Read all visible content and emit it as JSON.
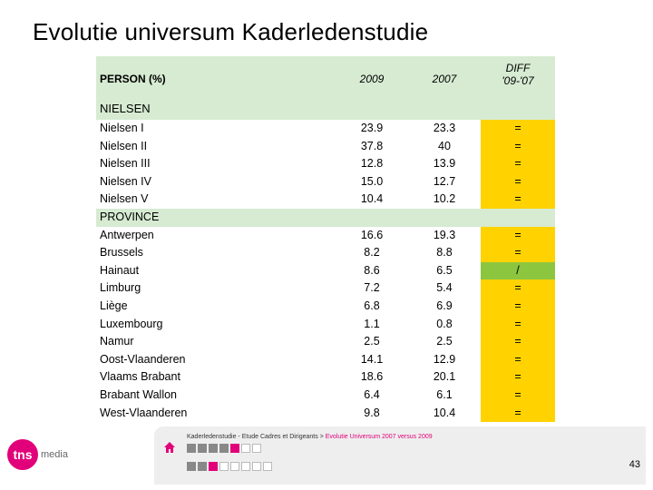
{
  "title": "Evolutie universum Kaderledenstudie",
  "table": {
    "header": {
      "col0": "PERSON (%)",
      "col1": "2009",
      "col2": "2007",
      "col3_line1": "DIFF",
      "col3_line2": "'09-'07"
    },
    "sections": [
      {
        "label": "NIELSEN",
        "rows": [
          {
            "name": "Nielsen I",
            "y2009": "23.9",
            "y2007": "23.3",
            "diff": "="
          },
          {
            "name": "Nielsen II",
            "y2009": "37.8",
            "y2007": "40",
            "diff": "="
          },
          {
            "name": "Nielsen III",
            "y2009": "12.8",
            "y2007": "13.9",
            "diff": "="
          },
          {
            "name": "Nielsen IV",
            "y2009": "15.0",
            "y2007": "12.7",
            "diff": "="
          },
          {
            "name": "Nielsen V",
            "y2009": "10.4",
            "y2007": "10.2",
            "diff": "="
          }
        ]
      },
      {
        "label": "PROVINCE",
        "rows": [
          {
            "name": "Antwerpen",
            "y2009": "16.6",
            "y2007": "19.3",
            "diff": "="
          },
          {
            "name": "Brussels",
            "y2009": "8.2",
            "y2007": "8.8",
            "diff": "="
          },
          {
            "name": "Hainaut",
            "y2009": "8.6",
            "y2007": "6.5",
            "diff": "/"
          },
          {
            "name": "Limburg",
            "y2009": "7.2",
            "y2007": "5.4",
            "diff": "="
          },
          {
            "name": "Liège",
            "y2009": "6.8",
            "y2007": "6.9",
            "diff": "="
          },
          {
            "name": "Luxembourg",
            "y2009": "1.1",
            "y2007": "0.8",
            "diff": "="
          },
          {
            "name": "Namur",
            "y2009": "2.5",
            "y2007": "2.5",
            "diff": "="
          },
          {
            "name": "Oost-Vlaanderen",
            "y2009": "14.1",
            "y2007": "12.9",
            "diff": "="
          },
          {
            "name": "Vlaams Brabant",
            "y2009": "18.6",
            "y2007": "20.1",
            "diff": "="
          },
          {
            "name": "Brabant Wallon",
            "y2009": "6.4",
            "y2007": "6.1",
            "diff": "="
          },
          {
            "name": "West-Vlaanderen",
            "y2009": "9.8",
            "y2007": "10.4",
            "diff": "="
          }
        ]
      }
    ]
  },
  "footer": {
    "breadcrumb_prefix": "Kaderledenstudie - Etude Cadres et Dirigeants > ",
    "breadcrumb_link": "Evolutie Universum 2007 versus 2009",
    "page_number": "43",
    "logo_mark": "tns",
    "logo_text": "media"
  },
  "colors": {
    "accent_pink": "#e2007a",
    "equal_yellow": "#ffd200",
    "up_green": "#8cc63f",
    "header_green": "#d6ebd2"
  }
}
